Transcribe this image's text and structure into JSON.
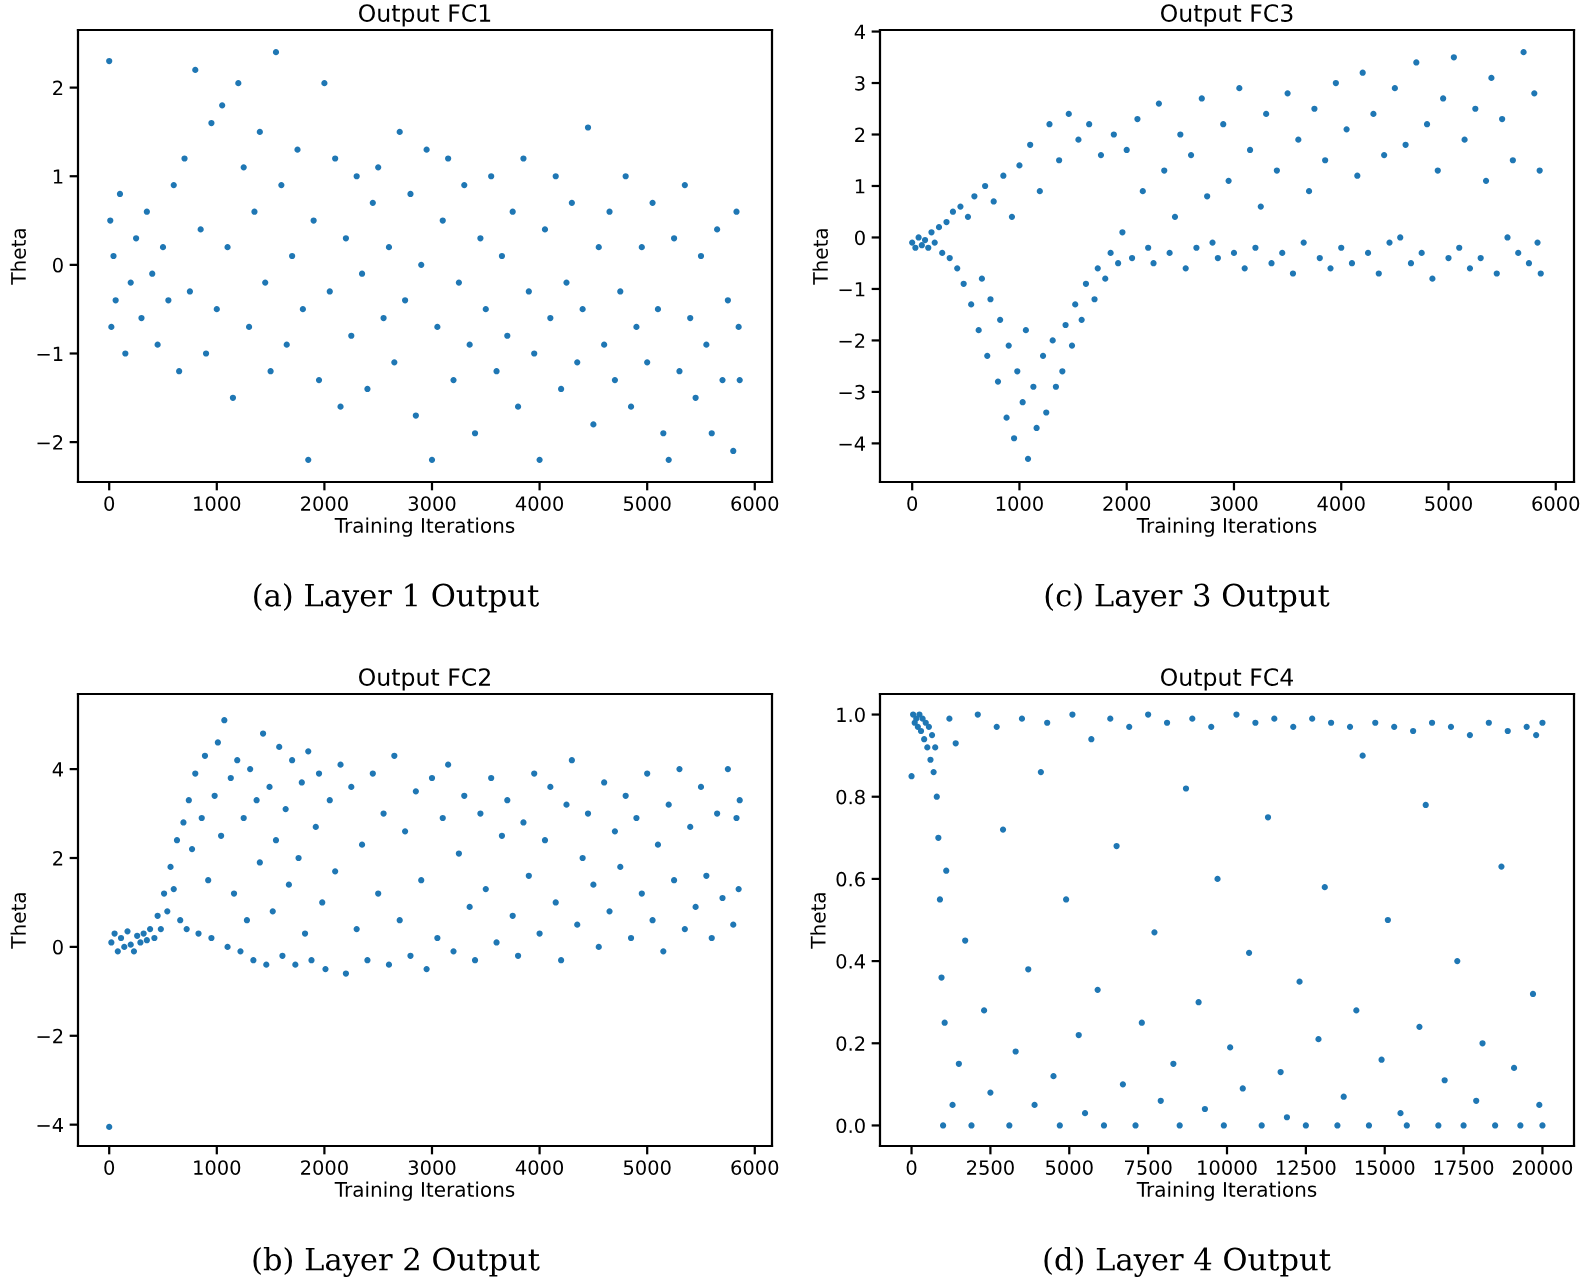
{
  "chart_data": [
    {
      "type": "scatter",
      "title": "Output FC1",
      "xlabel": "Training Iterations",
      "ylabel": "Theta",
      "annotations": [
        "(a) Layer 1 Output"
      ],
      "marker": "circle",
      "xlim": [
        -290,
        6160
      ],
      "ylim": [
        -2.45,
        2.65
      ],
      "xticks": [
        0,
        1000,
        2000,
        3000,
        4000,
        5000,
        6000
      ],
      "yticks": [
        -2,
        -1,
        0,
        1,
        2
      ],
      "series": [
        {
          "color": "#1f77b4",
          "x": [
            0,
            10,
            20,
            40,
            60,
            100,
            150,
            200,
            250,
            300,
            350,
            400,
            450,
            500,
            550,
            600,
            650,
            700,
            750,
            800,
            850,
            900,
            950,
            1000,
            1050,
            1100,
            1150,
            1200,
            1250,
            1300,
            1350,
            1400,
            1450,
            1500,
            1550,
            1600,
            1650,
            1700,
            1750,
            1800,
            1850,
            1900,
            1950,
            2000,
            2050,
            2100,
            2150,
            2200,
            2250,
            2300,
            2350,
            2400,
            2450,
            2500,
            2550,
            2600,
            2650,
            2700,
            2750,
            2800,
            2850,
            2900,
            2950,
            3000,
            3050,
            3100,
            3150,
            3200,
            3250,
            3300,
            3350,
            3400,
            3450,
            3500,
            3550,
            3600,
            3650,
            3700,
            3750,
            3800,
            3850,
            3900,
            3950,
            4000,
            4050,
            4100,
            4150,
            4200,
            4250,
            4300,
            4350,
            4400,
            4450,
            4500,
            4550,
            4600,
            4650,
            4700,
            4750,
            4800,
            4850,
            4900,
            4950,
            5000,
            5050,
            5100,
            5150,
            5200,
            5250,
            5300,
            5350,
            5400,
            5450,
            5500,
            5550,
            5600,
            5650,
            5700,
            5750,
            5800,
            5830,
            5850,
            5860
          ],
          "values": [
            2.3,
            0.5,
            -0.7,
            0.1,
            -0.4,
            0.8,
            -1.0,
            -0.2,
            0.3,
            -0.6,
            0.6,
            -0.1,
            -0.9,
            0.2,
            -0.4,
            0.9,
            -1.2,
            1.2,
            -0.3,
            2.2,
            0.4,
            -1.0,
            1.6,
            -0.5,
            1.8,
            0.2,
            -1.5,
            2.05,
            1.1,
            -0.7,
            0.6,
            1.5,
            -0.2,
            -1.2,
            2.4,
            0.9,
            -0.9,
            0.1,
            1.3,
            -0.5,
            -2.2,
            0.5,
            -1.3,
            2.05,
            -0.3,
            1.2,
            -1.6,
            0.3,
            -0.8,
            1.0,
            -0.1,
            -1.4,
            0.7,
            1.1,
            -0.6,
            0.2,
            -1.1,
            1.5,
            -0.4,
            0.8,
            -1.7,
            0.0,
            1.3,
            -2.2,
            -0.7,
            0.5,
            1.2,
            -1.3,
            -0.2,
            0.9,
            -0.9,
            -1.9,
            0.3,
            -0.5,
            1.0,
            -1.2,
            0.1,
            -0.8,
            0.6,
            -1.6,
            1.2,
            -0.3,
            -1.0,
            -2.2,
            0.4,
            -0.6,
            1.0,
            -1.4,
            -0.2,
            0.7,
            -1.1,
            -0.5,
            1.55,
            -1.8,
            0.2,
            -0.9,
            0.6,
            -1.3,
            -0.3,
            1.0,
            -1.6,
            -0.7,
            0.2,
            -1.1,
            0.7,
            -0.5,
            -1.9,
            -2.2,
            0.3,
            -1.2,
            0.9,
            -0.6,
            -1.5,
            0.1,
            -0.9,
            -1.9,
            0.4,
            -1.3,
            -0.4,
            -2.1,
            0.6,
            -0.7,
            -1.3
          ]
        }
      ]
    },
    {
      "type": "scatter",
      "title": "Output FC3",
      "xlabel": "Training Iterations",
      "ylabel": "Theta",
      "annotations": [
        "(c) Layer 3 Output"
      ],
      "marker": "circle",
      "xlim": [
        -300,
        6170
      ],
      "ylim": [
        -4.75,
        4.03
      ],
      "xticks": [
        0,
        1000,
        2000,
        3000,
        4000,
        5000,
        6000
      ],
      "yticks": [
        -4,
        -3,
        -2,
        -1,
        0,
        1,
        2,
        3,
        4
      ],
      "series": [
        {
          "color": "#1f77b4",
          "x": [
            0,
            30,
            60,
            90,
            120,
            150,
            180,
            210,
            250,
            280,
            320,
            350,
            380,
            420,
            450,
            480,
            520,
            550,
            580,
            620,
            650,
            680,
            700,
            730,
            760,
            800,
            820,
            850,
            880,
            900,
            930,
            950,
            980,
            1000,
            1030,
            1060,
            1080,
            1100,
            1130,
            1160,
            1190,
            1220,
            1250,
            1280,
            1310,
            1340,
            1370,
            1400,
            1430,
            1460,
            1490,
            1520,
            1550,
            1580,
            1620,
            1650,
            1700,
            1730,
            1760,
            1800,
            1850,
            1880,
            1920,
            1960,
            2000,
            2050,
            2100,
            2150,
            2200,
            2250,
            2300,
            2350,
            2400,
            2450,
            2500,
            2550,
            2600,
            2650,
            2700,
            2750,
            2800,
            2850,
            2900,
            2950,
            3000,
            3050,
            3100,
            3150,
            3200,
            3250,
            3300,
            3350,
            3400,
            3450,
            3500,
            3550,
            3600,
            3650,
            3700,
            3750,
            3800,
            3850,
            3900,
            3950,
            4000,
            4050,
            4100,
            4150,
            4200,
            4250,
            4300,
            4350,
            4400,
            4450,
            4500,
            4550,
            4600,
            4650,
            4700,
            4750,
            4800,
            4850,
            4900,
            4950,
            5000,
            5050,
            5100,
            5150,
            5200,
            5250,
            5300,
            5350,
            5400,
            5450,
            5500,
            5550,
            5600,
            5650,
            5700,
            5750,
            5800,
            5830,
            5850,
            5860
          ],
          "values": [
            -0.1,
            -0.2,
            0.0,
            -0.15,
            -0.05,
            -0.2,
            0.1,
            -0.1,
            0.2,
            -0.3,
            0.3,
            -0.4,
            0.5,
            -0.6,
            0.6,
            -0.9,
            0.4,
            -1.3,
            0.8,
            -1.8,
            -0.8,
            1.0,
            -2.3,
            -1.2,
            0.7,
            -2.8,
            -1.6,
            1.2,
            -3.5,
            -2.1,
            0.4,
            -3.9,
            -2.6,
            1.4,
            -3.2,
            -1.8,
            -4.3,
            1.8,
            -2.9,
            -3.7,
            0.9,
            -2.3,
            -3.4,
            2.2,
            -2.0,
            -2.9,
            1.5,
            -2.6,
            -1.7,
            2.4,
            -2.1,
            -1.3,
            1.9,
            -1.6,
            -0.9,
            2.2,
            -1.2,
            -0.6,
            1.6,
            -0.8,
            -0.3,
            2.0,
            -0.5,
            0.1,
            1.7,
            -0.4,
            2.3,
            0.9,
            -0.2,
            -0.5,
            2.6,
            1.3,
            -0.3,
            0.4,
            2.0,
            -0.6,
            1.6,
            -0.2,
            2.7,
            0.8,
            -0.1,
            -0.4,
            2.2,
            1.1,
            -0.3,
            2.9,
            -0.6,
            1.7,
            -0.2,
            0.6,
            2.4,
            -0.5,
            1.3,
            -0.3,
            2.8,
            -0.7,
            1.9,
            -0.1,
            0.9,
            2.5,
            -0.4,
            1.5,
            -0.6,
            3.0,
            -0.2,
            2.1,
            -0.5,
            1.2,
            3.2,
            -0.3,
            2.4,
            -0.7,
            1.6,
            -0.1,
            2.9,
            0.0,
            1.8,
            -0.5,
            3.4,
            -0.3,
            2.2,
            -0.8,
            1.3,
            2.7,
            -0.4,
            3.5,
            -0.2,
            1.9,
            -0.6,
            2.5,
            -0.4,
            1.1,
            3.1,
            -0.7,
            2.3,
            0.0,
            1.5,
            -0.3,
            3.6,
            -0.5,
            2.8,
            -0.1,
            1.3,
            -0.7
          ]
        }
      ]
    },
    {
      "type": "scatter",
      "title": "Output FC2",
      "xlabel": "Training Iterations",
      "ylabel": "Theta",
      "annotations": [
        "(b) Layer 2 Output"
      ],
      "marker": "circle",
      "xlim": [
        -290,
        6160
      ],
      "ylim": [
        -4.48,
        5.69
      ],
      "xticks": [
        0,
        1000,
        2000,
        3000,
        4000,
        5000,
        6000
      ],
      "yticks": [
        -4,
        -2,
        0,
        2,
        4
      ],
      "series": [
        {
          "color": "#1f77b4",
          "x": [
            0,
            20,
            50,
            80,
            110,
            140,
            170,
            200,
            230,
            260,
            290,
            320,
            350,
            380,
            420,
            450,
            480,
            510,
            540,
            570,
            600,
            630,
            660,
            690,
            720,
            740,
            770,
            800,
            830,
            860,
            890,
            920,
            950,
            980,
            1010,
            1040,
            1070,
            1100,
            1130,
            1160,
            1190,
            1220,
            1250,
            1280,
            1310,
            1340,
            1370,
            1400,
            1430,
            1460,
            1490,
            1520,
            1550,
            1580,
            1610,
            1640,
            1670,
            1700,
            1730,
            1760,
            1790,
            1820,
            1850,
            1880,
            1920,
            1950,
            1980,
            2010,
            2050,
            2100,
            2150,
            2200,
            2250,
            2300,
            2350,
            2400,
            2450,
            2500,
            2550,
            2600,
            2650,
            2700,
            2750,
            2800,
            2850,
            2900,
            2950,
            3000,
            3050,
            3100,
            3150,
            3200,
            3250,
            3300,
            3350,
            3400,
            3450,
            3500,
            3550,
            3600,
            3650,
            3700,
            3750,
            3800,
            3850,
            3900,
            3950,
            4000,
            4050,
            4100,
            4150,
            4200,
            4250,
            4300,
            4350,
            4400,
            4450,
            4500,
            4550,
            4600,
            4650,
            4700,
            4750,
            4800,
            4850,
            4900,
            4950,
            5000,
            5050,
            5100,
            5150,
            5200,
            5250,
            5300,
            5350,
            5400,
            5450,
            5500,
            5550,
            5600,
            5650,
            5700,
            5750,
            5800,
            5830,
            5850,
            5860
          ],
          "values": [
            -4.05,
            0.1,
            0.3,
            -0.1,
            0.2,
            0.0,
            0.35,
            0.05,
            -0.1,
            0.25,
            0.1,
            0.3,
            0.15,
            0.4,
            0.2,
            0.7,
            0.4,
            1.2,
            0.8,
            1.8,
            1.3,
            2.4,
            0.6,
            2.8,
            0.4,
            3.3,
            2.2,
            3.9,
            0.3,
            2.9,
            4.3,
            1.5,
            0.2,
            3.4,
            4.6,
            2.5,
            5.1,
            0.0,
            3.8,
            1.2,
            4.2,
            -0.1,
            2.9,
            0.6,
            4.0,
            -0.3,
            3.3,
            1.9,
            4.8,
            -0.4,
            3.6,
            0.8,
            2.4,
            4.5,
            -0.2,
            3.1,
            1.4,
            4.2,
            -0.4,
            2.0,
            3.7,
            0.3,
            4.4,
            -0.3,
            2.7,
            3.9,
            1.0,
            -0.5,
            3.3,
            1.7,
            4.1,
            -0.6,
            3.6,
            0.4,
            2.3,
            -0.3,
            3.9,
            1.2,
            3.0,
            -0.4,
            4.3,
            0.6,
            2.6,
            -0.2,
            3.5,
            1.5,
            -0.5,
            3.8,
            0.2,
            2.9,
            4.1,
            -0.1,
            2.1,
            3.4,
            0.9,
            -0.3,
            3.0,
            1.3,
            3.8,
            0.1,
            2.5,
            3.3,
            0.7,
            -0.2,
            2.8,
            1.6,
            3.9,
            0.3,
            2.4,
            3.6,
            1.0,
            -0.3,
            3.2,
            4.2,
            0.5,
            2.0,
            3.0,
            1.4,
            0.0,
            3.7,
            0.8,
            2.6,
            1.8,
            3.4,
            0.2,
            2.9,
            1.2,
            3.9,
            0.6,
            2.3,
            -0.1,
            3.2,
            1.5,
            4.0,
            0.4,
            2.7,
            0.9,
            3.6,
            1.6,
            0.2,
            3.0,
            1.1,
            4.0,
            0.5,
            2.9,
            1.3,
            3.3
          ]
        }
      ]
    },
    {
      "type": "scatter",
      "title": "Output FC4",
      "xlabel": "Training Iterations",
      "ylabel": "Theta",
      "annotations": [
        "(d) Layer 4 Output"
      ],
      "marker": "circle",
      "xlim": [
        -1000,
        21000
      ],
      "ylim": [
        -0.05,
        1.05
      ],
      "xticks": [
        0,
        2500,
        5000,
        7500,
        10000,
        12500,
        15000,
        17500,
        20000
      ],
      "yticks": [
        {
          "value": 0,
          "label": "0.0"
        },
        {
          "value": 0.2,
          "label": "0.2"
        },
        {
          "value": 0.4,
          "label": "0.4"
        },
        {
          "value": 0.6,
          "label": "0.6"
        },
        {
          "value": 0.8,
          "label": "0.8"
        },
        {
          "value": 1,
          "label": "1.0"
        }
      ],
      "series": [
        {
          "color": "#1f77b4",
          "x": [
            0,
            50,
            100,
            150,
            200,
            250,
            300,
            350,
            400,
            450,
            500,
            550,
            600,
            650,
            700,
            750,
            800,
            850,
            900,
            950,
            1000,
            1050,
            1100,
            1200,
            1300,
            1400,
            1500,
            1700,
            1900,
            2100,
            2300,
            2500,
            2700,
            2900,
            3100,
            3300,
            3500,
            3700,
            3900,
            4100,
            4300,
            4500,
            4700,
            4900,
            5100,
            5300,
            5500,
            5700,
            5900,
            6100,
            6300,
            6500,
            6700,
            6900,
            7100,
            7300,
            7500,
            7700,
            7900,
            8100,
            8300,
            8500,
            8700,
            8900,
            9100,
            9300,
            9500,
            9700,
            9900,
            10100,
            10300,
            10500,
            10700,
            10900,
            11100,
            11300,
            11500,
            11700,
            11900,
            12100,
            12300,
            12500,
            12700,
            12900,
            13100,
            13300,
            13500,
            13700,
            13900,
            14100,
            14300,
            14500,
            14700,
            14900,
            15100,
            15300,
            15500,
            15700,
            15900,
            16100,
            16300,
            16500,
            16700,
            16900,
            17100,
            17300,
            17500,
            17700,
            17900,
            18100,
            18300,
            18500,
            18700,
            18900,
            19100,
            19300,
            19500,
            19700,
            19800,
            19900,
            20000,
            20000
          ],
          "values": [
            0.85,
            1.0,
            0.98,
            0.99,
            0.97,
            1.0,
            0.96,
            0.99,
            0.94,
            0.98,
            0.92,
            0.97,
            0.89,
            0.95,
            0.86,
            0.92,
            0.8,
            0.7,
            0.55,
            0.36,
            0.0,
            0.25,
            0.62,
            0.99,
            0.05,
            0.93,
            0.15,
            0.45,
            0.0,
            1.0,
            0.28,
            0.08,
            0.97,
            0.72,
            0.0,
            0.18,
            0.99,
            0.38,
            0.05,
            0.86,
            0.98,
            0.12,
            0.0,
            0.55,
            1.0,
            0.22,
            0.03,
            0.94,
            0.33,
            0.0,
            0.99,
            0.68,
            0.1,
            0.97,
            0.0,
            0.25,
            1.0,
            0.47,
            0.06,
            0.98,
            0.15,
            0.0,
            0.82,
            0.99,
            0.3,
            0.04,
            0.97,
            0.6,
            0.0,
            0.19,
            1.0,
            0.09,
            0.42,
            0.98,
            0.0,
            0.75,
            0.99,
            0.13,
            0.02,
            0.97,
            0.35,
            0.0,
            0.99,
            0.21,
            0.58,
            0.98,
            0.0,
            0.07,
            0.97,
            0.28,
            0.9,
            0.0,
            0.98,
            0.16,
            0.5,
            0.97,
            0.03,
            0.0,
            0.96,
            0.24,
            0.78,
            0.98,
            0.0,
            0.11,
            0.97,
            0.4,
            0.0,
            0.95,
            0.06,
            0.2,
            0.98,
            0.0,
            0.63,
            0.96,
            0.14,
            0.0,
            0.97,
            0.32,
            0.95,
            0.05,
            0.0,
            0.98
          ]
        }
      ]
    }
  ]
}
